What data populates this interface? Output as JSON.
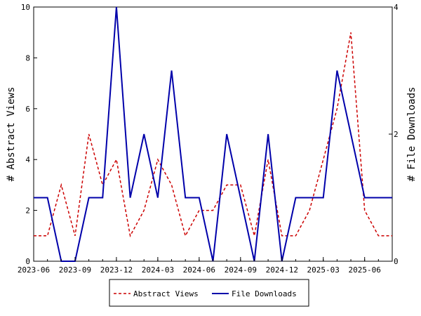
{
  "chart_data": {
    "type": "line",
    "x": [
      "2023-06",
      "2023-07",
      "2023-08",
      "2023-09",
      "2023-10",
      "2023-11",
      "2023-12",
      "2024-01",
      "2024-02",
      "2024-03",
      "2024-04",
      "2024-05",
      "2024-06",
      "2024-07",
      "2024-08",
      "2024-09",
      "2024-10",
      "2024-11",
      "2024-12",
      "2025-01",
      "2025-02",
      "2025-03",
      "2025-04",
      "2025-05",
      "2025-06",
      "2025-07",
      "2025-08"
    ],
    "x_ticks": [
      "2023-06",
      "2023-09",
      "2023-12",
      "2024-03",
      "2024-06",
      "2024-09",
      "2024-12",
      "2025-03",
      "2025-06"
    ],
    "y_left": {
      "label": "# Abstract Views",
      "lim": [
        0,
        10
      ],
      "ticks": [
        "0",
        "2",
        "4",
        "6",
        "8",
        "10"
      ]
    },
    "y_right": {
      "label": "# File Downloads",
      "lim": [
        0,
        4
      ],
      "ticks": [
        "0",
        "2",
        "4"
      ]
    },
    "series": [
      {
        "name": "Abstract Views",
        "axis": "left",
        "color": "#cc0000",
        "style": "dashed",
        "values": [
          1,
          1,
          3,
          1,
          5,
          3,
          4,
          1,
          2,
          4,
          3,
          1,
          2,
          2,
          3,
          3,
          1,
          4,
          1,
          1,
          2,
          4,
          6,
          9,
          2,
          1,
          1
        ]
      },
      {
        "name": "File Downloads",
        "axis": "right",
        "color": "#0000aa",
        "style": "solid",
        "values": [
          1,
          1,
          0,
          0,
          1,
          1,
          4,
          1,
          2,
          1,
          3,
          1,
          1,
          0,
          2,
          1,
          0,
          2,
          0,
          1,
          1,
          1,
          3,
          2,
          1,
          1,
          1
        ]
      }
    ],
    "legend": "bottom",
    "grid": false
  }
}
